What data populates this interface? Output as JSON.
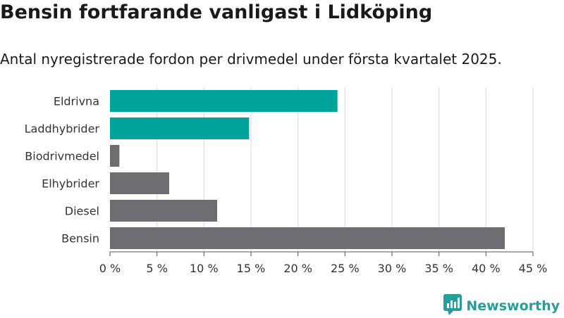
{
  "page": {
    "title": "Bensin fortfarande vanligast i Lidköping",
    "subtitle": "Antal nyregistrerade fordon per drivmedel under första kvartalet 2025."
  },
  "chart_data": {
    "type": "bar",
    "orientation": "horizontal",
    "categories": [
      "Eldrivna",
      "Laddhybrider",
      "Biodrivmedel",
      "Elhybrider",
      "Diesel",
      "Bensin"
    ],
    "values": [
      24.2,
      14.8,
      1.0,
      6.3,
      11.4,
      42.0
    ],
    "value_unit": "%",
    "bar_colors": [
      "#00a39a",
      "#00a39a",
      "#6e6d72",
      "#6e6d72",
      "#6e6d72",
      "#6e6d72"
    ],
    "xlim": [
      0,
      45
    ],
    "xticks": [
      0,
      5,
      10,
      15,
      20,
      25,
      30,
      35,
      40,
      45
    ],
    "xtick_labels": [
      "0 %",
      "5 %",
      "10 %",
      "15 %",
      "20 %",
      "25 %",
      "30 %",
      "35 %",
      "40 %",
      "45 %"
    ],
    "xlabel": "",
    "ylabel": "",
    "grid": "vertical",
    "legend": "none"
  },
  "branding": {
    "logo_text": "Newsworthy",
    "logo_color": "#2a9d9a",
    "logo_icon": "bar-chart-icon"
  }
}
